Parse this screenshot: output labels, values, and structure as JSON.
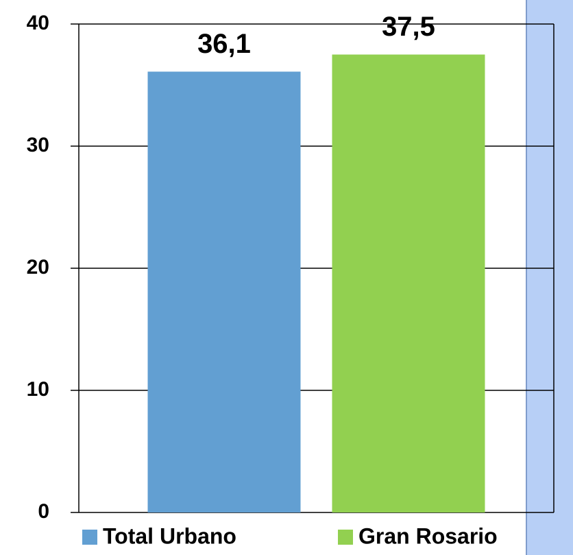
{
  "chart_data": {
    "type": "bar",
    "categories": [
      null
    ],
    "series": [
      {
        "name": "Total Urbano",
        "color": "#629fd2",
        "values": [
          36.1
        ],
        "value_labels": [
          "36,1"
        ]
      },
      {
        "name": "Gran Rosario",
        "color": "#92d050",
        "values": [
          37.5
        ],
        "value_labels": [
          "37,5"
        ]
      }
    ],
    "ylim": [
      0,
      40
    ],
    "yticks": [
      0,
      10,
      20,
      30,
      40
    ],
    "grid": true
  }
}
